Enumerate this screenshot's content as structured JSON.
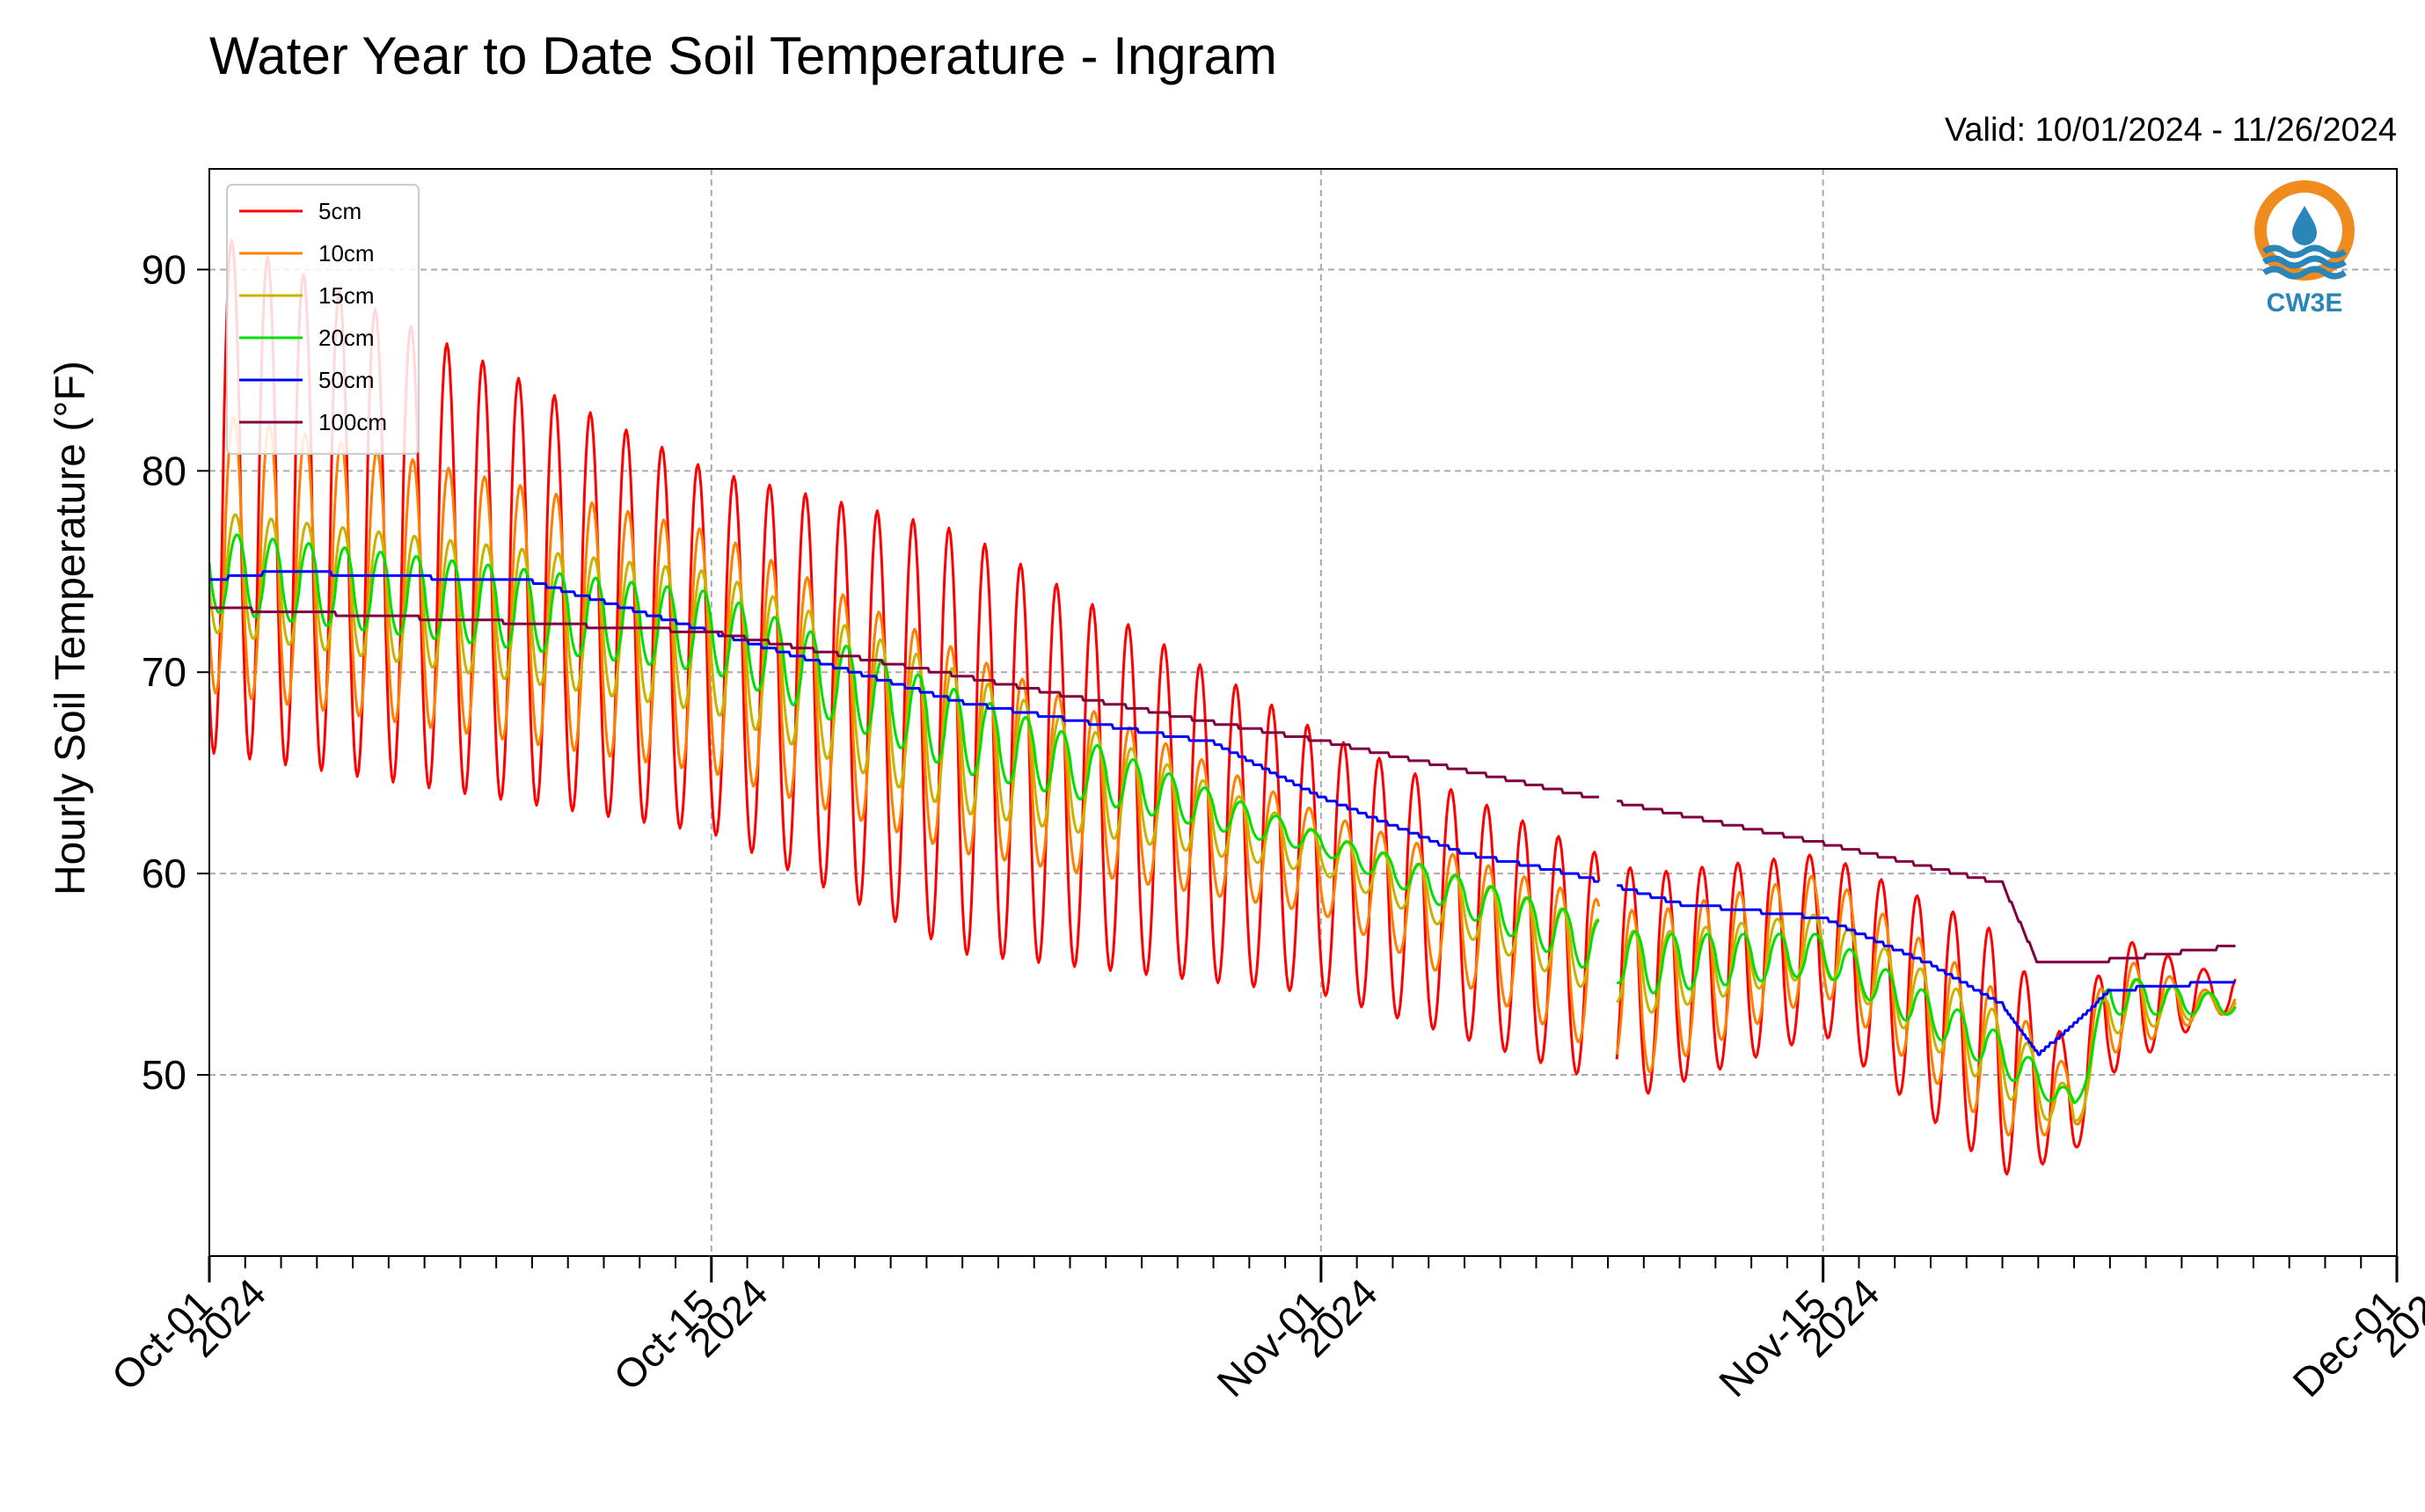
{
  "chart_data": {
    "type": "line",
    "title": "Water Year to Date Soil Temperature - Ingram",
    "valid_text": "Valid: 10/01/2024 - 11/26/2024",
    "ylabel": "Hourly Soil Temperature (°F)",
    "xlabel": "",
    "ylim": [
      41,
      95
    ],
    "xlim": [
      "2024-10-01",
      "2024-12-01"
    ],
    "x_ticks": [
      {
        "date": "2024-10-01",
        "line1": "Oct-01",
        "line2": "2024"
      },
      {
        "date": "2024-10-15",
        "line1": "Oct-15",
        "line2": "2024"
      },
      {
        "date": "2024-11-01",
        "line1": "Nov-01",
        "line2": "2024"
      },
      {
        "date": "2024-11-15",
        "line1": "Nov-15",
        "line2": "2024"
      },
      {
        "date": "2024-12-01",
        "line1": "Dec-01",
        "line2": "2024"
      }
    ],
    "y_ticks": [
      50,
      60,
      70,
      80,
      90
    ],
    "grid": true,
    "legend_position": "top-left",
    "data_gap": [
      "2024-11-08T18:00",
      "2024-11-09T06:00"
    ],
    "series": [
      {
        "name": "5cm",
        "color": "#ff0000",
        "x": [
          "2024-10-01",
          "2024-10-15",
          "2024-10-22",
          "2024-11-01",
          "2024-11-10",
          "2024-11-15",
          "2024-11-20",
          "2024-11-22",
          "2024-11-23",
          "2024-11-26"
        ],
        "daily_max": [
          92,
          80,
          77,
          67,
          60,
          61,
          57,
          51,
          57,
          55
        ],
        "daily_min": [
          66,
          62,
          56,
          54,
          49,
          52,
          45,
          46,
          50,
          53
        ]
      },
      {
        "name": "10cm",
        "color": "#ff8000",
        "x": [
          "2024-10-01",
          "2024-10-15",
          "2024-10-22",
          "2024-11-01",
          "2024-11-10",
          "2024-11-15",
          "2024-11-20",
          "2024-11-22",
          "2024-11-23",
          "2024-11-26"
        ],
        "daily_max": [
          83,
          77,
          71,
          63,
          58,
          60,
          54,
          50,
          56,
          54
        ],
        "daily_min": [
          69,
          65,
          61,
          58,
          50,
          54,
          47,
          47,
          51,
          53
        ]
      },
      {
        "name": "15cm",
        "color": "#c8b400",
        "x": [
          "2024-10-01",
          "2024-10-15",
          "2024-10-22",
          "2024-11-01",
          "2024-11-10",
          "2024-11-15",
          "2024-11-20",
          "2024-11-22",
          "2024-11-23",
          "2024-11-26"
        ],
        "daily_max": [
          78,
          75,
          70,
          62,
          57,
          58,
          53,
          49,
          55,
          54
        ],
        "daily_min": [
          72,
          68,
          63,
          60,
          53,
          55,
          49,
          47,
          52,
          53
        ]
      },
      {
        "name": "20cm",
        "color": "#00e000",
        "x": [
          "2024-10-01",
          "2024-10-15",
          "2024-10-22",
          "2024-11-01",
          "2024-11-10",
          "2024-11-15",
          "2024-11-20",
          "2024-11-22",
          "2024-11-23",
          "2024-11-26"
        ],
        "daily_max": [
          77,
          74,
          69,
          62,
          57,
          57,
          52,
          49,
          55,
          54
        ],
        "daily_min": [
          73,
          70,
          65,
          61,
          54,
          55,
          50,
          48,
          53,
          53
        ]
      },
      {
        "name": "50cm",
        "color": "#0000ff",
        "x": [
          "2024-10-01",
          "2024-10-03",
          "2024-10-10",
          "2024-10-15",
          "2024-10-22",
          "2024-10-29",
          "2024-11-01",
          "2024-11-05",
          "2024-11-08",
          "2024-11-11",
          "2024-11-15",
          "2024-11-18",
          "2024-11-20",
          "2024-11-21",
          "2024-11-22",
          "2024-11-23",
          "2024-11-26"
        ],
        "values": [
          74.6,
          75.0,
          74.5,
          72.0,
          68.5,
          66.5,
          63.8,
          61.0,
          60.0,
          58.5,
          57.8,
          55.5,
          53.5,
          51.0,
          52.5,
          54.2,
          54.6
        ]
      },
      {
        "name": "100cm",
        "color": "#800040",
        "x": [
          "2024-10-01",
          "2024-10-15",
          "2024-10-22",
          "2024-10-29",
          "2024-11-01",
          "2024-11-04",
          "2024-11-08",
          "2024-11-15",
          "2024-11-18",
          "2024-11-20",
          "2024-11-21",
          "2024-11-22",
          "2024-11-26"
        ],
        "values": [
          73.2,
          72.0,
          69.8,
          67.5,
          66.6,
          65.5,
          64.0,
          61.5,
          60.3,
          59.5,
          55.5,
          55.5,
          56.3
        ]
      }
    ]
  },
  "logo": {
    "text": "CW3E",
    "ring_color": "#f08c1e",
    "wave_color": "#2a86b8"
  }
}
